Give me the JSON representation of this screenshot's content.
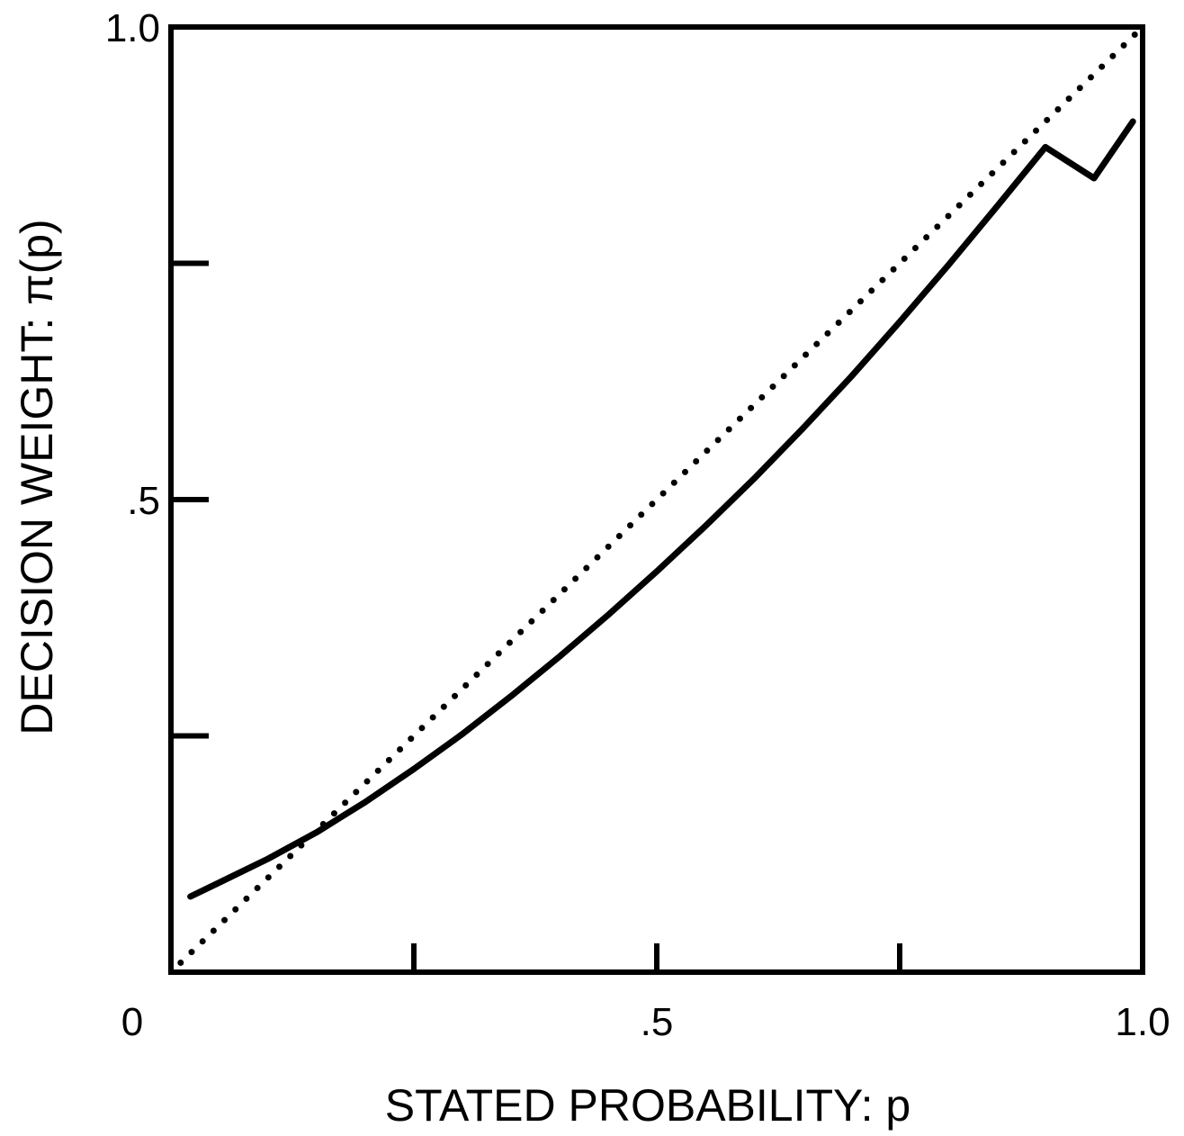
{
  "chart_data": {
    "type": "line",
    "title": "",
    "xlabel": "STATED PROBABILITY: p",
    "ylabel": "DECISION WEIGHT: π(p)",
    "xlim": [
      0,
      1.0
    ],
    "ylim": [
      0,
      1.0
    ],
    "x_tick_labels": [
      {
        "value": 0,
        "label": "0"
      },
      {
        "value": 0.5,
        "label": ".5"
      },
      {
        "value": 1.0,
        "label": "1.0"
      }
    ],
    "y_tick_labels": [
      {
        "value": 0.5,
        "label": ".5"
      },
      {
        "value": 1.0,
        "label": "1.0"
      }
    ],
    "x_ticks": [
      0.25,
      0.5,
      0.75
    ],
    "y_ticks": [
      0.25,
      0.5,
      0.75
    ],
    "grid": false,
    "series": [
      {
        "style": "solid",
        "color": "#000000",
        "x": [
          0.02,
          0.05,
          0.1,
          0.15,
          0.2,
          0.25,
          0.3,
          0.35,
          0.4,
          0.45,
          0.5,
          0.55,
          0.6,
          0.65,
          0.7,
          0.75,
          0.8,
          0.85,
          0.9,
          0.95,
          0.99
        ],
        "y": [
          0.08,
          0.095,
          0.12,
          0.148,
          0.18,
          0.215,
          0.252,
          0.292,
          0.334,
          0.378,
          0.424,
          0.472,
          0.522,
          0.575,
          0.63,
          0.688,
          0.748,
          0.81,
          0.873,
          0.84,
          0.9
        ]
      },
      {
        "style": "dotted",
        "color": "#000000",
        "x": [
          0.01,
          1.0
        ],
        "y": [
          0.01,
          1.0
        ]
      }
    ]
  }
}
